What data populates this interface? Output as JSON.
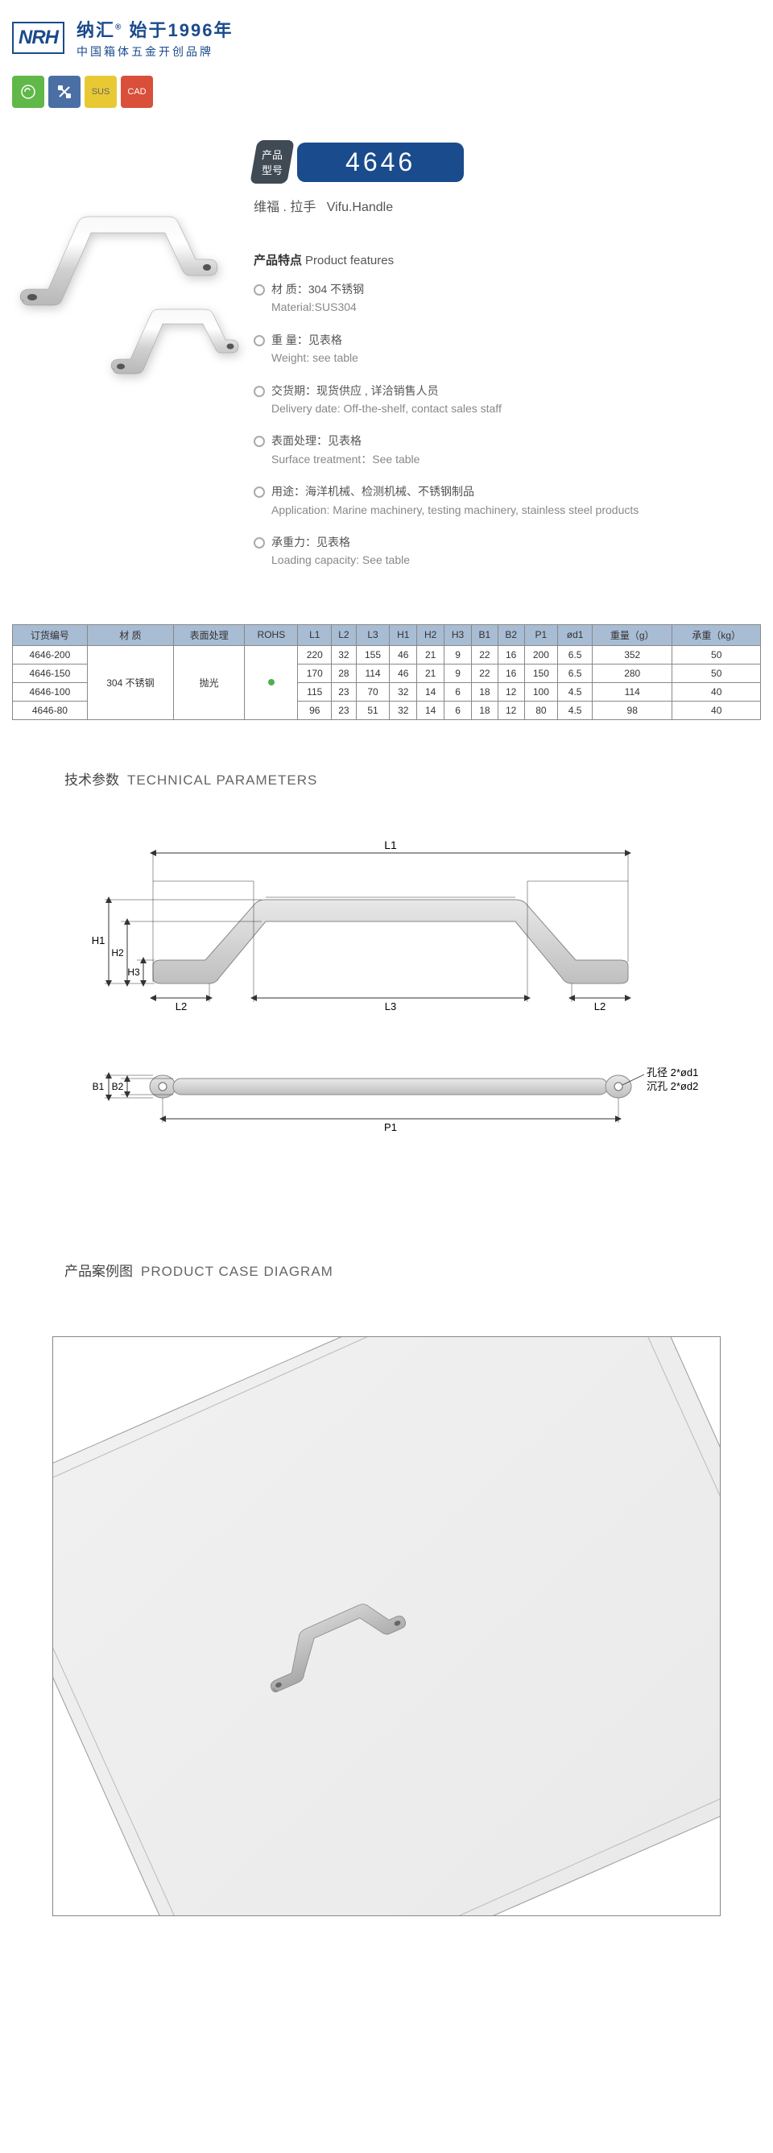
{
  "header": {
    "logo": "NRH",
    "brand_cn": "纳汇",
    "brand_sup": "®",
    "brand_year": "始于1996年",
    "brand_sub": "中国箱体五金开创品牌"
  },
  "icons": [
    "green-icon",
    "blue-icon",
    "SUS",
    "CAD"
  ],
  "model": {
    "label": "产品\n型号",
    "number": "4646",
    "name_cn": "维福 . 拉手",
    "name_en": "Vifu.Handle"
  },
  "features_title": {
    "cn": "产品特点",
    "en": "Product features"
  },
  "features": [
    {
      "cn": "材   质：304 不锈钢",
      "en": "Material:SUS304"
    },
    {
      "cn": "重   量：见表格",
      "en": "Weight: see table"
    },
    {
      "cn": "交货期：现货供应 , 详洽销售人员",
      "en": "Delivery date: Off-the-shelf, contact sales staff"
    },
    {
      "cn": "表面处理：见表格",
      "en": "Surface treatment：See table"
    },
    {
      "cn": "用途：海洋机械、检测机械、不锈钢制品",
      "en": "Application: Marine machinery, testing machinery, stainless steel products"
    },
    {
      "cn": "承重力：见表格",
      "en": "Loading capacity: See table"
    }
  ],
  "table": {
    "headers": [
      "订货编号",
      "材   质",
      "表面处理",
      "ROHS",
      "L1",
      "L2",
      "L3",
      "H1",
      "H2",
      "H3",
      "B1",
      "B2",
      "P1",
      "ød1",
      "重量（g）",
      "承重（kg）"
    ],
    "material": "304 不锈钢",
    "surface": "抛光",
    "rows": [
      [
        "4646-200",
        "220",
        "32",
        "155",
        "46",
        "21",
        "9",
        "22",
        "16",
        "200",
        "6.5",
        "352",
        "50"
      ],
      [
        "4646-150",
        "170",
        "28",
        "114",
        "46",
        "21",
        "9",
        "22",
        "16",
        "150",
        "6.5",
        "280",
        "50"
      ],
      [
        "4646-100",
        "115",
        "23",
        "70",
        "32",
        "14",
        "6",
        "18",
        "12",
        "100",
        "4.5",
        "114",
        "40"
      ],
      [
        "4646-80",
        "96",
        "23",
        "51",
        "32",
        "14",
        "6",
        "18",
        "12",
        "80",
        "4.5",
        "98",
        "40"
      ]
    ]
  },
  "tech_title": {
    "cn": "技术参数",
    "en": "TECHNICAL PARAMETERS"
  },
  "tech_labels": {
    "L1": "L1",
    "L2": "L2",
    "L3": "L3",
    "H1": "H1",
    "H2": "H2",
    "H3": "H3",
    "B1": "B1",
    "B2": "B2",
    "P1": "P1",
    "hole1": "孔径 2*ød1",
    "hole2": "沉孔 2*ød2"
  },
  "case_title": {
    "cn": "产品案例图",
    "en": "PRODUCT CASE DIAGRAM"
  },
  "colors": {
    "primary": "#1a4b8c",
    "dark": "#404a54",
    "th_bg": "#a8bcd4",
    "border": "#888"
  }
}
